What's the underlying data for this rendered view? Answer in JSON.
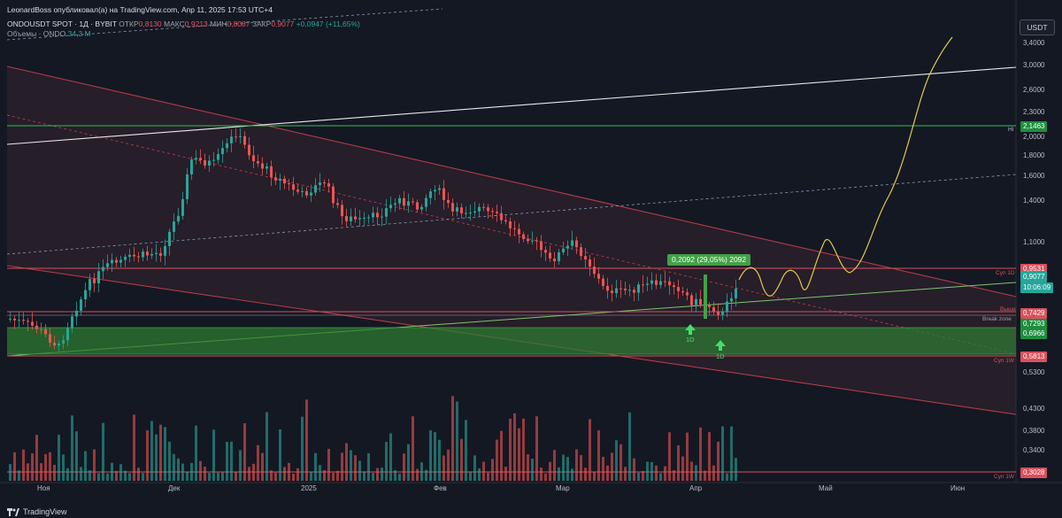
{
  "publisher": "LeonardBoss опубликовал(а) на TradingView.com, Апр 11, 2025 17:53 UTC+4",
  "symbol": "ONDOUSDT SPOT · 1Д · BYBIT",
  "ohlc": {
    "open_label": "ОТКР",
    "open": "0,8130",
    "high_label": "МАКС",
    "high": "0,9213",
    "low_label": "МИН",
    "low": "0,8087",
    "close_label": "ЗАКР",
    "close": "0,9077",
    "change": "+0,0947 (+11,65%)"
  },
  "volume": {
    "label": "Объемы · ONDO",
    "value": "34,3 M"
  },
  "currency_button": "USDT",
  "price_axis": [
    "3,4000",
    "3,0000",
    "2,6000",
    "2,3000",
    "2,0000",
    "1,8000",
    "1,6000",
    "1,4000",
    "1,1000",
    "0,5300",
    "0,4300",
    "0,3800",
    "0,3400"
  ],
  "price_tags": [
    {
      "value": "2,1463",
      "color": "#1e8e3e"
    },
    {
      "value": "0,9531",
      "color": "#d8505c"
    },
    {
      "value": "0,9077",
      "color": "#26a69a"
    },
    {
      "value": "10:06:09",
      "color": "#26a69a"
    },
    {
      "value": "0,7429",
      "color": "#d8505c"
    },
    {
      "value": "0,7293",
      "color": "#1e8e3e"
    },
    {
      "value": "0,6966",
      "color": "#1e8e3e"
    },
    {
      "value": "0,5813",
      "color": "#d8505c"
    },
    {
      "value": "0,3028",
      "color": "#d8505c"
    }
  ],
  "side_labels": {
    "hi": "HI",
    "sup_1d": "Суп 1D",
    "sup_1d_b": "Выше",
    "break_zone": "Break zone",
    "sup_1w": "Суп 1W",
    "sup_1w_b": "Суп 1W"
  },
  "time_axis": [
    {
      "label": "Ноя",
      "pos": "nov"
    },
    {
      "label": "Дек",
      "pos": "dec"
    },
    {
      "label": "2025",
      "pos": "y2025"
    },
    {
      "label": "Фев",
      "pos": "feb"
    },
    {
      "label": "Мар",
      "pos": "mar"
    },
    {
      "label": "Апр",
      "pos": "apr"
    },
    {
      "label": "Май",
      "pos": "may"
    },
    {
      "label": "Июн",
      "pos": "jun"
    }
  ],
  "callout": "0,2092 (29,05%) 2092",
  "arrow_labels": [
    "1D",
    "1D"
  ],
  "brand": "TradingView",
  "colors": {
    "up": "#26a69a",
    "down": "#ef5350",
    "channel": "#b33b47",
    "zone": "#2e7d32",
    "projection": "#e6c84a"
  }
}
